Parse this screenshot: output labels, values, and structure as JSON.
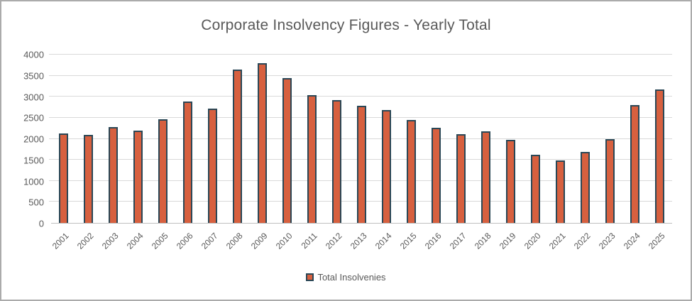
{
  "chart_data": {
    "type": "bar",
    "title": "Corporate Insolvency Figures - Yearly Total",
    "categories": [
      "2001",
      "2002",
      "2003",
      "2004",
      "2005",
      "2006",
      "2007",
      "2008",
      "2009",
      "2010",
      "2011",
      "2012",
      "2013",
      "2014",
      "2015",
      "2016",
      "2017",
      "2018",
      "2019",
      "2020",
      "2021",
      "2022",
      "2023",
      "2024",
      "2025"
    ],
    "series": [
      {
        "name": "Total Insolvenies",
        "values": [
          2130,
          2090,
          2280,
          2190,
          2470,
          2880,
          2720,
          3650,
          3800,
          3440,
          3030,
          2920,
          2780,
          2690,
          2440,
          2260,
          2110,
          2170,
          1970,
          1620,
          1490,
          1680,
          2000,
          2800,
          3170
        ]
      }
    ],
    "xlabel": "",
    "ylabel": "",
    "ylim": [
      0,
      4000
    ],
    "ytick_step": 500,
    "yticks": [
      0,
      500,
      1000,
      1500,
      2000,
      2500,
      3000,
      3500,
      4000
    ],
    "grid": true,
    "legend_position": "bottom",
    "colors": {
      "bar_fill": "#D7603F",
      "bar_border": "#2A4756",
      "gridline": "#D9D9D9",
      "axis_line": "#BFBFBF",
      "text": "#595959",
      "frame_border": "#ABABAB",
      "background": "#FFFFFF"
    }
  },
  "legend": {
    "label": "Total Insolvenies"
  }
}
